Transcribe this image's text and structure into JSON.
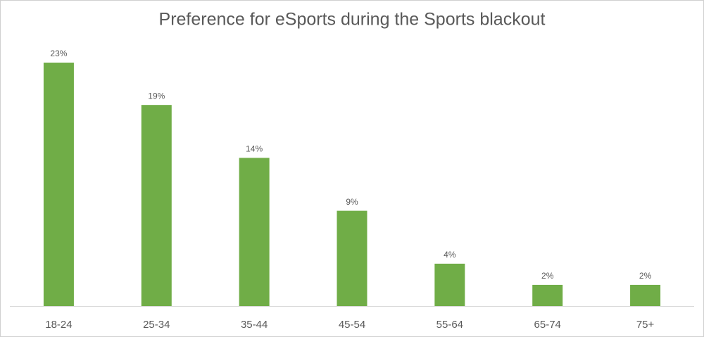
{
  "chart_data": {
    "type": "bar",
    "title": "Preference for eSports during the Sports blackout",
    "categories": [
      "18-24",
      "25-34",
      "35-44",
      "45-54",
      "55-64",
      "65-74",
      "75+"
    ],
    "values": [
      23,
      19,
      14,
      9,
      4,
      2,
      2
    ],
    "value_labels": [
      "23%",
      "19%",
      "14%",
      "9%",
      "4%",
      "2%",
      "2%"
    ],
    "color": "#70ad47"
  }
}
